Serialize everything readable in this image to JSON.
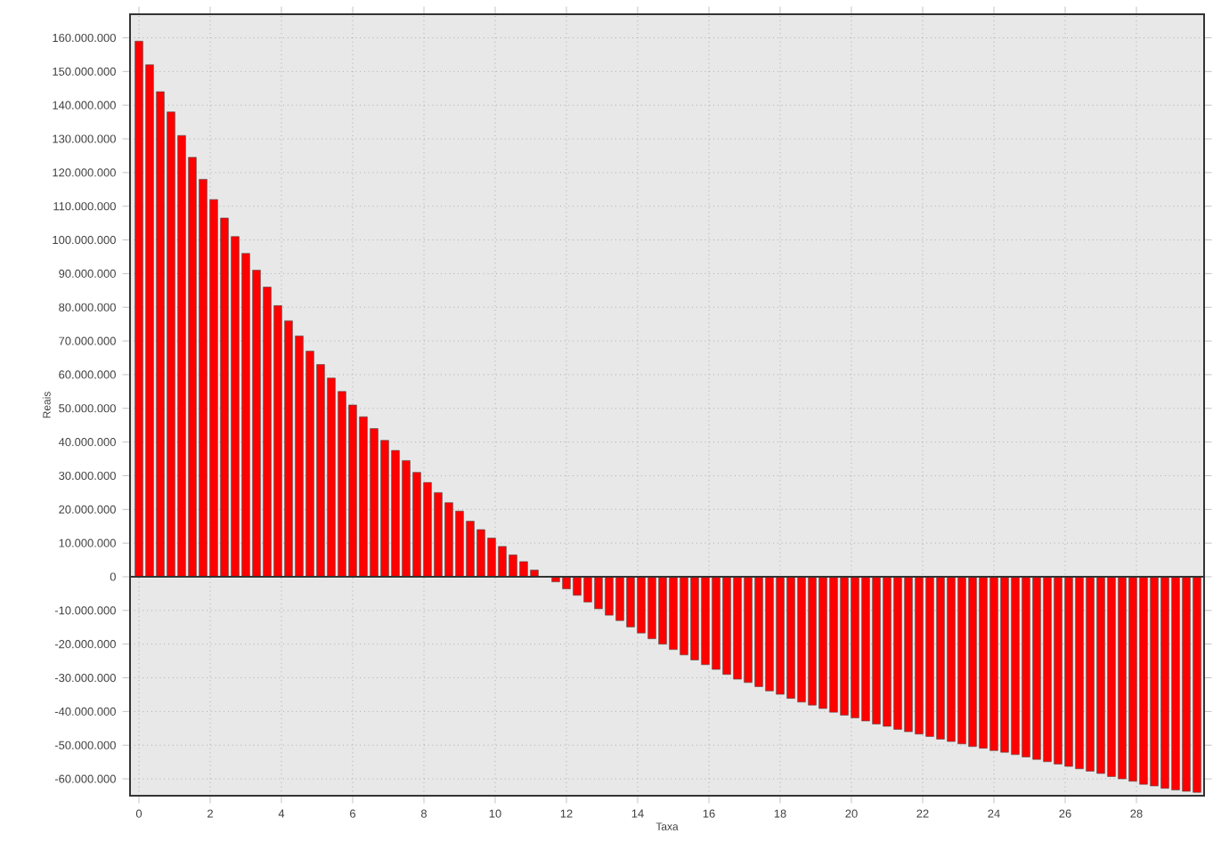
{
  "chart_data": {
    "type": "bar",
    "xlabel": "Taxa",
    "ylabel": "Reais",
    "color": "#ff0000",
    "grid": true,
    "x": [
      0,
      0.3,
      0.6,
      0.9,
      1.2,
      1.5,
      1.8,
      2.1,
      2.4,
      2.7,
      3,
      3.3,
      3.6,
      3.9,
      4.2,
      4.5,
      4.8,
      5.1,
      5.4,
      5.7,
      6,
      6.3,
      6.6,
      6.9,
      7.2,
      7.5,
      7.8,
      8.1,
      8.4,
      8.7,
      9,
      9.3,
      9.6,
      9.9,
      10.2,
      10.5,
      10.8,
      11.1,
      11.4,
      11.7,
      12,
      12.3,
      12.6,
      12.9,
      13.2,
      13.5,
      13.8,
      14.1,
      14.4,
      14.7,
      15,
      15.3,
      15.6,
      15.9,
      16.2,
      16.5,
      16.8,
      17.1,
      17.4,
      17.7,
      18,
      18.3,
      18.6,
      18.9,
      19.2,
      19.5,
      19.8,
      20.1,
      20.4,
      20.7,
      21,
      21.3,
      21.6,
      21.9,
      22.2,
      22.5,
      22.8,
      23.1,
      23.4,
      23.7,
      24,
      24.3,
      24.6,
      24.9,
      25.2,
      25.5,
      25.8,
      26.1,
      26.4,
      26.7,
      27,
      27.3,
      27.6,
      27.9,
      28.2,
      28.5,
      28.8,
      29.1,
      29.4,
      29.7
    ],
    "values": [
      159000000,
      152000000,
      144000000,
      138000000,
      131000000,
      124500000,
      118000000,
      112000000,
      106500000,
      101000000,
      96000000,
      91000000,
      86000000,
      80500000,
      76000000,
      71500000,
      67000000,
      63000000,
      59000000,
      55000000,
      51000000,
      47500000,
      44000000,
      40500000,
      37500000,
      34500000,
      31000000,
      28000000,
      25000000,
      22000000,
      19500000,
      16500000,
      14000000,
      11500000,
      9000000,
      6500000,
      4500000,
      2000000,
      null,
      -1500000,
      -3600000,
      -5500000,
      -7500000,
      -9500000,
      -11400000,
      -13000000,
      -14900000,
      -16700000,
      -18400000,
      -20000000,
      -21600000,
      -23200000,
      -24700000,
      -26100000,
      -27500000,
      -29000000,
      -30400000,
      -31400000,
      -32600000,
      -33900000,
      -34900000,
      -36100000,
      -37200000,
      -38100000,
      -39100000,
      -40200000,
      -41100000,
      -41900000,
      -42800000,
      -43700000,
      -44400000,
      -45300000,
      -46000000,
      -46700000,
      -47400000,
      -48200000,
      -48900000,
      -49600000,
      -50400000,
      -50900000,
      -51600000,
      -52100000,
      -52800000,
      -53500000,
      -54200000,
      -54900000,
      -55600000,
      -56300000,
      -57000000,
      -57700000,
      -58400000,
      -59300000,
      -60000000,
      -60700000,
      -61600000,
      -62100000,
      -62800000,
      -63300000,
      -63700000,
      -64000000
    ],
    "xlim": [
      -0.25,
      29.9
    ],
    "ylim": [
      -65000000,
      167000000
    ],
    "xticks": [
      0,
      2,
      4,
      6,
      8,
      10,
      12,
      14,
      16,
      18,
      20,
      22,
      24,
      26,
      28
    ],
    "yticks": [
      {
        "value": -60000000,
        "label": "-60.000.000"
      },
      {
        "value": -50000000,
        "label": "-50.000.000"
      },
      {
        "value": -40000000,
        "label": "-40.000.000"
      },
      {
        "value": -30000000,
        "label": "-30.000.000"
      },
      {
        "value": -20000000,
        "label": "-20.000.000"
      },
      {
        "value": -10000000,
        "label": "-10.000.000"
      },
      {
        "value": 0,
        "label": "0"
      },
      {
        "value": 10000000,
        "label": "10.000.000"
      },
      {
        "value": 20000000,
        "label": "20.000.000"
      },
      {
        "value": 30000000,
        "label": "30.000.000"
      },
      {
        "value": 40000000,
        "label": "40.000.000"
      },
      {
        "value": 50000000,
        "label": "50.000.000"
      },
      {
        "value": 60000000,
        "label": "60.000.000"
      },
      {
        "value": 70000000,
        "label": "70.000.000"
      },
      {
        "value": 80000000,
        "label": "80.000.000"
      },
      {
        "value": 90000000,
        "label": "90.000.000"
      },
      {
        "value": 100000000,
        "label": "100.000.000"
      },
      {
        "value": 110000000,
        "label": "110.000.000"
      },
      {
        "value": 120000000,
        "label": "120.000.000"
      },
      {
        "value": 130000000,
        "label": "130.000.000"
      },
      {
        "value": 140000000,
        "label": "140.000.000"
      },
      {
        "value": 150000000,
        "label": "150.000.000"
      },
      {
        "value": 160000000,
        "label": "160.000.000"
      }
    ]
  }
}
